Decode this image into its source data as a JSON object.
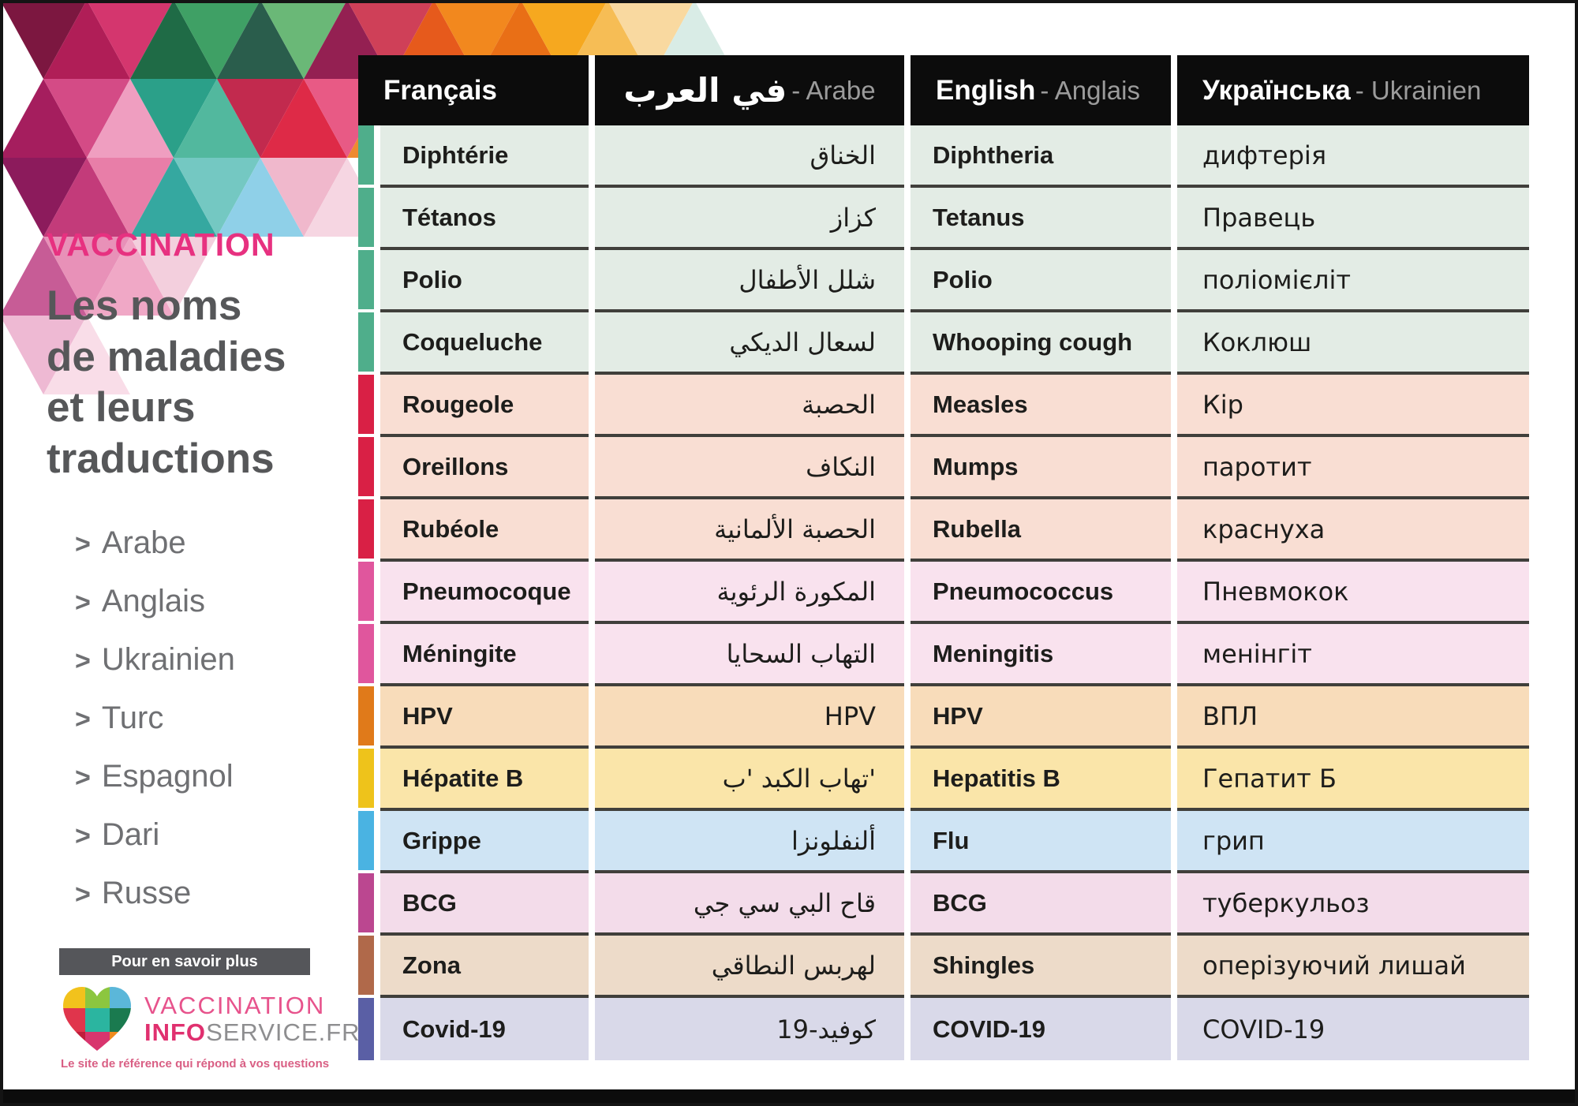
{
  "sidebar": {
    "kicker": "VACCINATION",
    "title": "Les noms\nde maladies\net leurs\ntraductions",
    "bullet": ">",
    "languages": [
      "Arabe",
      "Anglais",
      "Ukrainien",
      "Turc",
      "Espagnol",
      "Dari",
      "Russe"
    ],
    "more_info": "Pour en savoir plus",
    "logo": {
      "line1": "VACCINATION",
      "line2_bold": "INFO",
      "line2_rest": "SERVICE.FR",
      "tagline": "Le site de référence qui répond à vos questions"
    },
    "colors": {
      "kicker_pink": "#e73180",
      "title_gray": "#565759",
      "list_gray": "#6f7073"
    }
  },
  "table": {
    "headers": [
      {
        "primary": "Français",
        "secondary": ""
      },
      {
        "primary": "في العرب",
        "secondary": "- Arabe"
      },
      {
        "primary": "English",
        "secondary": "- Anglais"
      },
      {
        "primary": "Українська",
        "secondary": "- Ukrainien"
      }
    ],
    "rows": [
      {
        "fr": "Diphtérie",
        "ar": "الخناق",
        "en": "Diphtheria",
        "uk": "дифтерія",
        "group": "green"
      },
      {
        "fr": "Tétanos",
        "ar": "كزاز",
        "en": "Tetanus",
        "uk": "Правець",
        "group": "green"
      },
      {
        "fr": "Polio",
        "ar": "شلل الأطفال",
        "en": "Polio",
        "uk": "поліомієліт",
        "group": "green"
      },
      {
        "fr": "Coqueluche",
        "ar": "لسعال الديكي",
        "en": "Whooping cough",
        "uk": "Коклюш",
        "group": "green"
      },
      {
        "fr": "Rougeole",
        "ar": "الحصبة",
        "en": "Measles",
        "uk": "Кір",
        "group": "red"
      },
      {
        "fr": "Oreillons",
        "ar": "النكاف",
        "en": "Mumps",
        "uk": "паротит",
        "group": "red"
      },
      {
        "fr": "Rubéole",
        "ar": "الحصبة الألمانية",
        "en": "Rubella",
        "uk": "краснуха",
        "group": "red"
      },
      {
        "fr": "Pneumocoque",
        "ar": "المكورة الرئوية",
        "en": "Pneumococcus",
        "uk": "Пневмокок",
        "group": "pink"
      },
      {
        "fr": "Méningite",
        "ar": "التهاب السحايا",
        "en": "Meningitis",
        "uk": "менінгіт",
        "group": "pink"
      },
      {
        "fr": "HPV",
        "ar": "HPV",
        "en": "HPV",
        "uk": "ВПЛ",
        "group": "orange"
      },
      {
        "fr": "Hépatite B",
        "ar": "'تهاب الكبد 'ب",
        "en": "Hepatitis B",
        "uk": "Гепатит Б",
        "group": "yellow"
      },
      {
        "fr": "Grippe",
        "ar": "ألنفلونزا",
        "en": "Flu",
        "uk": "грип",
        "group": "blue"
      },
      {
        "fr": "BCG",
        "ar": "قاح البي سي جي",
        "en": "BCG",
        "uk": "туберкульоз",
        "group": "mauve"
      },
      {
        "fr": "Zona",
        "ar": "لهربس النطاقي",
        "en": "Shingles",
        "uk": "оперізуючий лишай",
        "group": "tan"
      },
      {
        "fr": "Covid-19",
        "ar": "كوفيد-19",
        "en": "COVID-19",
        "uk": "COVID-19",
        "group": "lavender"
      }
    ],
    "group_colors": {
      "green": {
        "bg": "#e3ece5",
        "accent": "#4fae8b"
      },
      "red": {
        "bg": "#f9ded3",
        "accent": "#d92045"
      },
      "pink": {
        "bg": "#f9e2ee",
        "accent": "#e0569d"
      },
      "orange": {
        "bg": "#f8dcba",
        "accent": "#e07a1a"
      },
      "yellow": {
        "bg": "#fae5a9",
        "accent": "#eec31b"
      },
      "blue": {
        "bg": "#cfe4f4",
        "accent": "#4ab3e2"
      },
      "mauve": {
        "bg": "#f3dcea",
        "accent": "#bb4790"
      },
      "tan": {
        "bg": "#eddbc9",
        "accent": "#b0694a"
      },
      "lavender": {
        "bg": "#d9d9e9",
        "accent": "#5a5fa5"
      }
    }
  }
}
